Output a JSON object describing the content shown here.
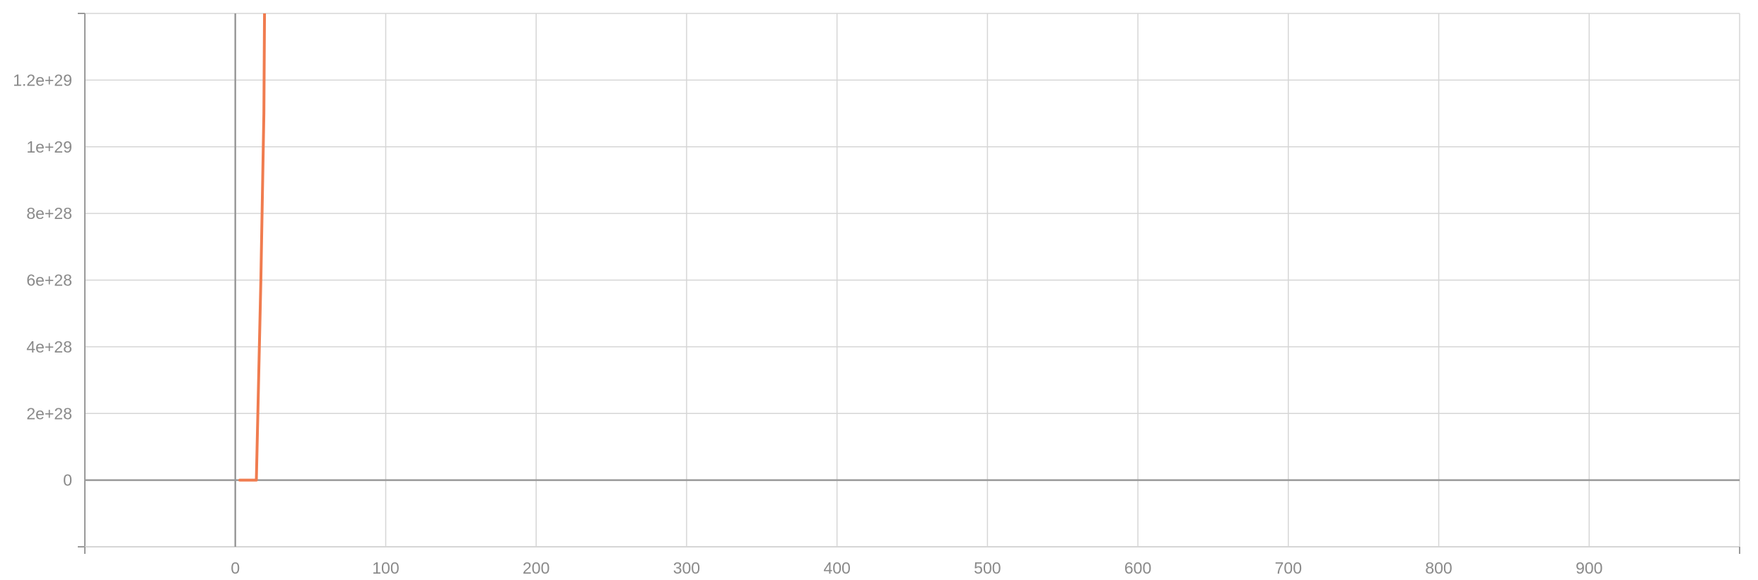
{
  "chart_data": {
    "type": "line",
    "title": "",
    "xlabel": "",
    "ylabel": "",
    "xlim": [
      -100,
      1000
    ],
    "ylim": [
      -2e+28,
      1.4e+29
    ],
    "x_ticks": [
      0,
      100,
      200,
      300,
      400,
      500,
      600,
      700,
      800,
      900
    ],
    "x_tick_labels": [
      "0",
      "100",
      "200",
      "300",
      "400",
      "500",
      "600",
      "700",
      "800",
      "900"
    ],
    "y_ticks": [
      0,
      2e+28,
      4e+28,
      6e+28,
      8e+28,
      1e+29,
      1.2e+29
    ],
    "y_tick_labels": [
      "0",
      "2e+28",
      "4e+28",
      "6e+28",
      "8e+28",
      "1e+29",
      "1.2e+29"
    ],
    "grid": true,
    "legend": "none",
    "colors": {
      "line": "#f07c4f",
      "grid": "#d6d6d6",
      "axis": "#9a9a9a",
      "zero_line": "#9a9a9a",
      "tick_label": "#8a8a8a"
    },
    "series": [
      {
        "x": [
          3,
          8,
          14,
          17,
          19,
          19.5
        ],
        "y": [
          0,
          0,
          0,
          6e+28,
          1.1e+29,
          1.45e+29
        ]
      }
    ]
  }
}
